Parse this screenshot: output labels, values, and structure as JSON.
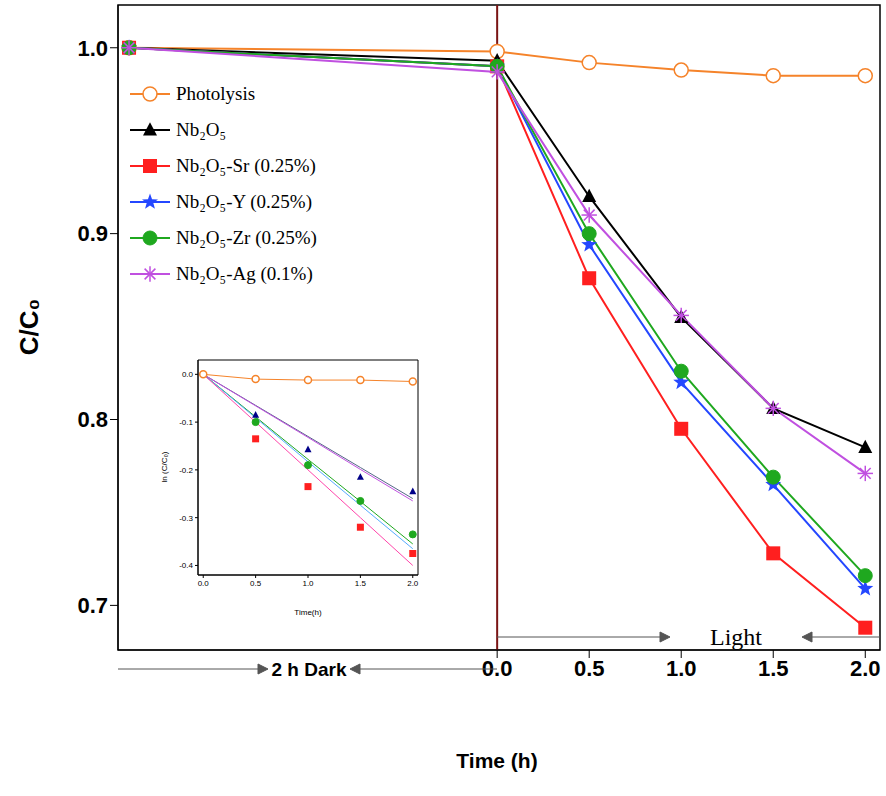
{
  "chart_data": [
    {
      "type": "line",
      "xlabel": "Time (h)",
      "ylabel": "C/C₀",
      "annotations": [
        "2 h Dark",
        "Light"
      ],
      "x": [
        -2,
        0,
        0.5,
        1,
        1.5,
        2
      ],
      "xlim": [
        -2.06,
        2.08
      ],
      "xticks": [
        {
          "value": 0,
          "label": "0.0"
        },
        0.5,
        {
          "value": 1,
          "label": "1.0"
        },
        1.5,
        {
          "value": 2,
          "label": "2.0"
        }
      ],
      "ylim": [
        0.676,
        1.023
      ],
      "yticks": [
        0.7,
        0.8,
        0.9,
        {
          "value": 1,
          "label": "1.0"
        }
      ],
      "legend": "upper left",
      "series": [
        {
          "name": "Photolysis",
          "color": "#f5832a",
          "marker": "circle-open",
          "values": [
            1.0,
            0.998,
            0.992,
            0.988,
            0.985,
            0.985
          ]
        },
        {
          "name": "Nb₂O₅",
          "color": "#000000",
          "marker": "triangle",
          "values": [
            1.0,
            0.993,
            0.92,
            0.855,
            0.806,
            0.785
          ]
        },
        {
          "name": "Nb₂O₅-Sr (0.25%)",
          "color": "#ff1f1f",
          "marker": "square",
          "values": [
            1.0,
            0.99,
            0.876,
            0.795,
            0.728,
            0.688
          ]
        },
        {
          "name": "Nb₂O₅-Y (0.25%)",
          "color": "#2447ff",
          "marker": "star",
          "values": [
            1.0,
            0.99,
            0.894,
            0.82,
            0.765,
            0.709
          ]
        },
        {
          "name": "Nb₂O₅-Zr (0.25%)",
          "color": "#1fa81f",
          "marker": "circle",
          "values": [
            1.0,
            0.99,
            0.9,
            0.826,
            0.769,
            0.716
          ]
        },
        {
          "name": "Nb₂O₅-Ag (0.1%)",
          "color": "#c050e0",
          "marker": "asterisk",
          "values": [
            1.0,
            0.987,
            0.91,
            0.856,
            0.806,
            0.771
          ]
        }
      ]
    },
    {
      "type": "line",
      "xlabel": "Time(h)",
      "ylabel": "ln (C/C₀)",
      "x": [
        0,
        0.5,
        1,
        1.5,
        2
      ],
      "xlim": [
        -0.05,
        2.05
      ],
      "xticks": [
        {
          "value": 0,
          "label": "0.0"
        },
        0.5,
        {
          "value": 1,
          "label": "1.0"
        },
        1.5,
        {
          "value": 2,
          "label": "2.0"
        }
      ],
      "ylim": [
        -0.42,
        0.03
      ],
      "yticks": [
        {
          "value": 0,
          "label": "0.0"
        },
        -0.1,
        -0.2,
        -0.3,
        -0.4
      ],
      "series": [
        {
          "type": "line",
          "color": "#f5832a",
          "marker": "circle-open",
          "values": [
            0.0,
            -0.01,
            -0.012,
            -0.012,
            -0.015
          ]
        },
        {
          "type": "line",
          "color": "#556688",
          "values": [
            0.0,
            -0.065,
            -0.13,
            -0.195,
            -0.26
          ]
        },
        {
          "type": "line",
          "color": "#c050e0",
          "values": [
            0.0,
            -0.066,
            -0.132,
            -0.199,
            -0.265
          ]
        },
        {
          "type": "line",
          "color": "#1fa81f",
          "values": [
            0.0,
            -0.089,
            -0.178,
            -0.266,
            -0.355
          ]
        },
        {
          "type": "line",
          "color": "#55aaff",
          "values": [
            0.0,
            -0.091,
            -0.183,
            -0.274,
            -0.365
          ]
        },
        {
          "type": "line",
          "color": "#ff44aa",
          "values": [
            0.0,
            -0.1,
            -0.2,
            -0.3,
            -0.4
          ]
        },
        {
          "type": "scatter",
          "color": "#000088",
          "marker": "triangle",
          "values": [
            null,
            -0.085,
            -0.157,
            -0.215,
            -0.245
          ]
        },
        {
          "type": "scatter",
          "color": "#1fa81f",
          "marker": "circle",
          "values": [
            null,
            -0.1,
            -0.19,
            -0.265,
            -0.335
          ]
        },
        {
          "type": "scatter",
          "color": "#ff1f1f",
          "marker": "square",
          "values": [
            null,
            -0.135,
            -0.235,
            -0.32,
            -0.375
          ]
        }
      ]
    }
  ]
}
